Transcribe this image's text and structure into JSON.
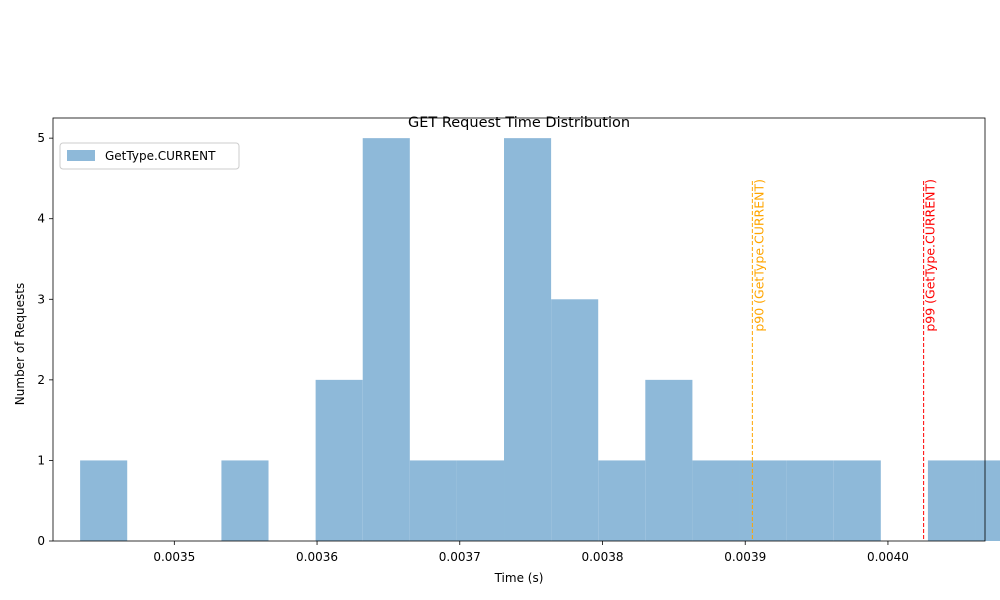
{
  "chart_data": {
    "type": "bar",
    "title": "GET Request Time Distribution",
    "xlabel": "Time (s)",
    "ylabel": "Number of Requests",
    "xlim": [
      0.003415,
      0.004068
    ],
    "ylim": [
      0,
      5.25
    ],
    "xticks": [
      "0.0035",
      "0.0036",
      "0.0037",
      "0.0038",
      "0.0039",
      "0.0040"
    ],
    "xtick_values": [
      0.0035,
      0.0036,
      0.0037,
      0.0038,
      0.0039,
      0.004
    ],
    "yticks": [
      "0",
      "1",
      "2",
      "3",
      "4",
      "5"
    ],
    "ytick_values": [
      0,
      1,
      2,
      3,
      4,
      5
    ],
    "grid": false,
    "legend_position": "upper-left",
    "bar_color": "#8EB9D9",
    "series": [
      {
        "name": "GetType.CURRENT",
        "bins": [
          {
            "start": 0.003434,
            "end": 0.003467,
            "count": 1
          },
          {
            "start": 0.003467,
            "end": 0.0035,
            "count": 0
          },
          {
            "start": 0.0035,
            "end": 0.003533,
            "count": 0
          },
          {
            "start": 0.003533,
            "end": 0.003566,
            "count": 1
          },
          {
            "start": 0.003566,
            "end": 0.003599,
            "count": 0
          },
          {
            "start": 0.003599,
            "end": 0.003632,
            "count": 2
          },
          {
            "start": 0.003632,
            "end": 0.003665,
            "count": 5
          },
          {
            "start": 0.003665,
            "end": 0.003698,
            "count": 1
          },
          {
            "start": 0.003698,
            "end": 0.003731,
            "count": 1
          },
          {
            "start": 0.003731,
            "end": 0.003764,
            "count": 5
          },
          {
            "start": 0.003764,
            "end": 0.003797,
            "count": 3
          },
          {
            "start": 0.003797,
            "end": 0.00383,
            "count": 1
          },
          {
            "start": 0.00383,
            "end": 0.003863,
            "count": 2
          },
          {
            "start": 0.003863,
            "end": 0.003896,
            "count": 1
          },
          {
            "start": 0.003896,
            "end": 0.003929,
            "count": 1
          },
          {
            "start": 0.003929,
            "end": 0.003962,
            "count": 1
          },
          {
            "start": 0.003962,
            "end": 0.003995,
            "count": 1
          },
          {
            "start": 0.003995,
            "end": 0.004028,
            "count": 0
          },
          {
            "start": 0.004028,
            "end": 0.004061,
            "count": 1
          },
          {
            "start": 0.004061,
            "end": 0.004094,
            "count": 1
          }
        ]
      }
    ],
    "reference_lines": [
      {
        "label": "p90 (GetType.CURRENT)",
        "x": 0.003905,
        "color": "#FFA500"
      },
      {
        "label": "p99 (GetType.CURRENT)",
        "x": 0.004025,
        "color": "#FF0000"
      }
    ]
  }
}
